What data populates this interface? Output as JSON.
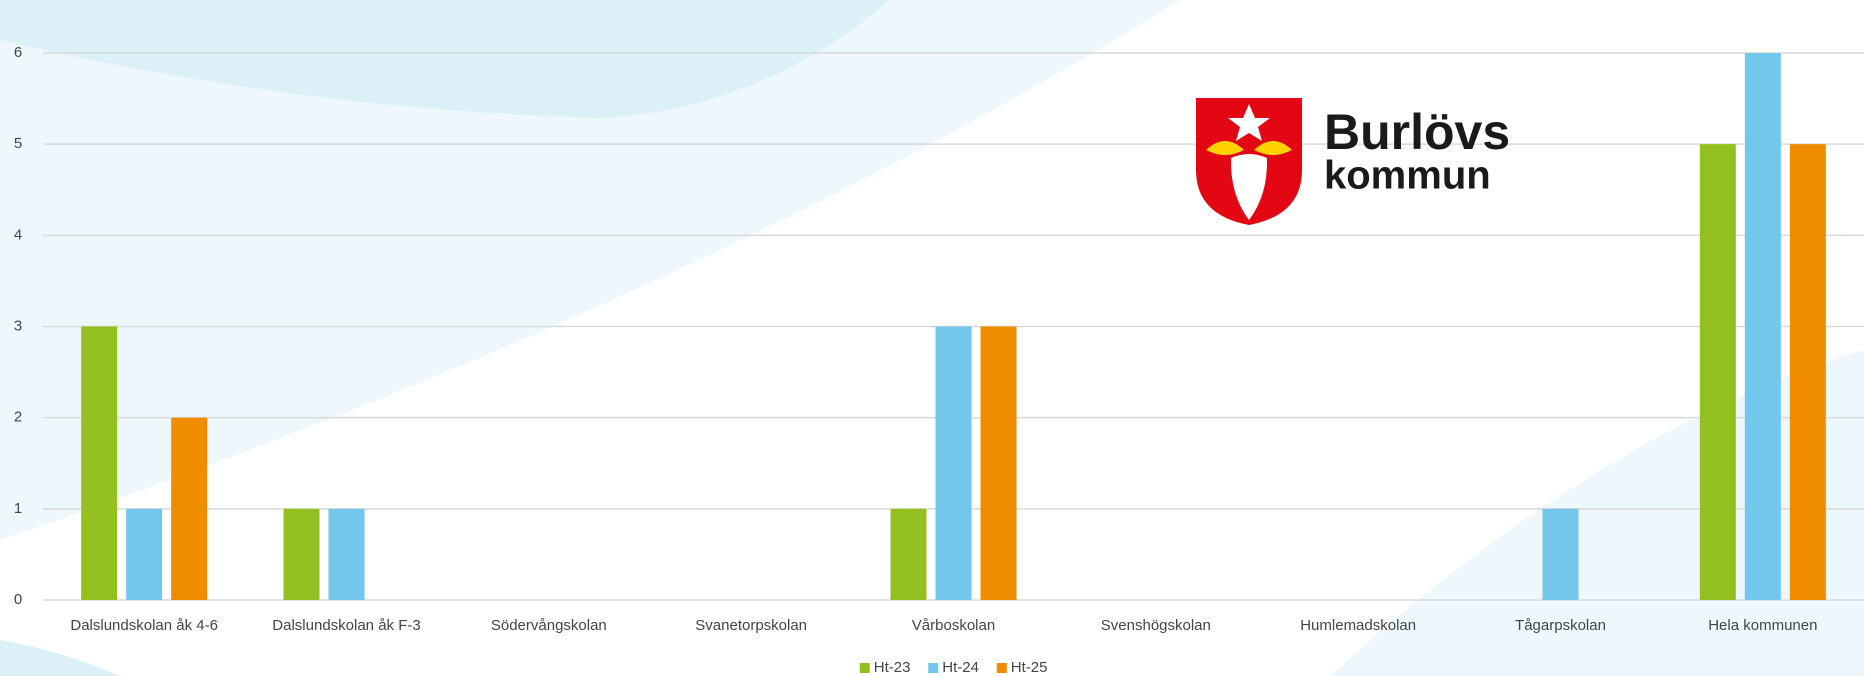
{
  "chart_data": {
    "type": "bar",
    "categories": [
      "Dalslundskolan åk 4-6",
      "Dalslundskolan åk F-3",
      "Södervångskolan",
      "Svanetorpskolan",
      "Vårboskolan",
      "Svenshögskolan",
      "Humlemadskolan",
      "Tågarpskolan",
      "Hela kommunen"
    ],
    "series": [
      {
        "name": "Ht-23",
        "color": "#93c01f",
        "values": [
          3,
          1,
          0,
          0,
          1,
          0,
          0,
          0,
          5
        ]
      },
      {
        "name": "Ht-24",
        "color": "#72c7ea",
        "values": [
          1,
          1,
          0,
          0,
          3,
          0,
          0,
          1,
          6
        ]
      },
      {
        "name": "Ht-25",
        "color": "#f08c00",
        "values": [
          2,
          0,
          0,
          0,
          3,
          0,
          0,
          0,
          5
        ]
      }
    ],
    "ylim": [
      0,
      6
    ],
    "yticks": [
      0,
      1,
      2,
      3,
      4,
      5,
      6
    ],
    "grid": true,
    "legend": "bottom",
    "logo": {
      "line1": "Burlövs",
      "line2": "kommun"
    }
  }
}
